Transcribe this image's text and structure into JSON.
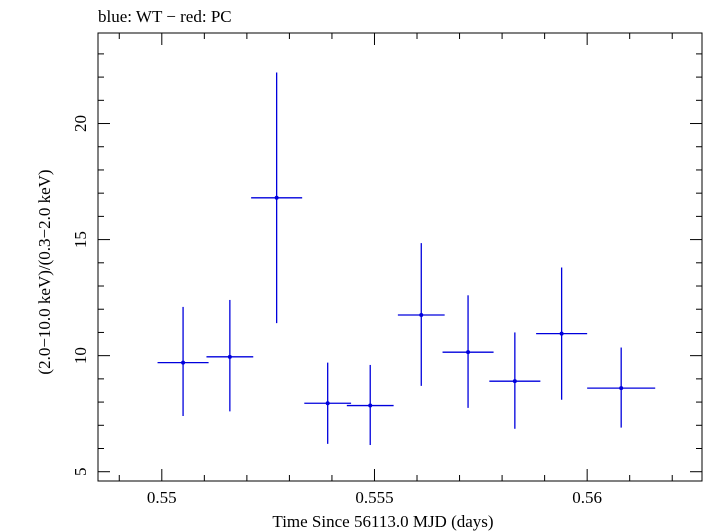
{
  "chart_data": {
    "type": "scatter",
    "title": "blue: WT − red: PC",
    "xlabel": "Time Since 56113.0 MJD (days)",
    "ylabel": "(2.0−10.0 keV)/(0.3−2.0 keV)",
    "xlim": [
      0.5485,
      0.5627
    ],
    "ylim": [
      4.6,
      23.9
    ],
    "x_ticks": [
      0.55,
      0.555,
      0.56
    ],
    "x_tick_labels": [
      "0.55",
      "0.555",
      "0.56"
    ],
    "y_ticks": [
      5,
      10,
      15,
      20
    ],
    "y_tick_labels": [
      "5",
      "10",
      "15",
      "20"
    ],
    "grid": false,
    "series": [
      {
        "color": "#0000dd",
        "points": [
          {
            "x": 0.5505,
            "y": 9.7,
            "x_err": 0.0006,
            "y_low": 7.4,
            "y_high": 12.1
          },
          {
            "x": 0.5516,
            "y": 9.95,
            "x_err": 0.00055,
            "y_low": 7.6,
            "y_high": 12.4
          },
          {
            "x": 0.5527,
            "y": 16.8,
            "x_err": 0.0006,
            "y_low": 11.4,
            "y_high": 22.2
          },
          {
            "x": 0.5539,
            "y": 7.95,
            "x_err": 0.00055,
            "y_low": 6.2,
            "y_high": 9.7
          },
          {
            "x": 0.5549,
            "y": 7.85,
            "x_err": 0.00055,
            "y_low": 6.15,
            "y_high": 9.6
          },
          {
            "x": 0.5561,
            "y": 11.75,
            "x_err": 0.00055,
            "y_low": 8.7,
            "y_high": 14.85
          },
          {
            "x": 0.5572,
            "y": 10.15,
            "x_err": 0.0006,
            "y_low": 7.75,
            "y_high": 12.6
          },
          {
            "x": 0.5583,
            "y": 8.9,
            "x_err": 0.0006,
            "y_low": 6.85,
            "y_high": 11.0
          },
          {
            "x": 0.5594,
            "y": 10.95,
            "x_err": 0.0006,
            "y_low": 8.1,
            "y_high": 13.8
          },
          {
            "x": 0.5608,
            "y": 8.6,
            "x_err": 0.0008,
            "y_low": 6.9,
            "y_high": 10.35
          }
        ]
      }
    ]
  }
}
